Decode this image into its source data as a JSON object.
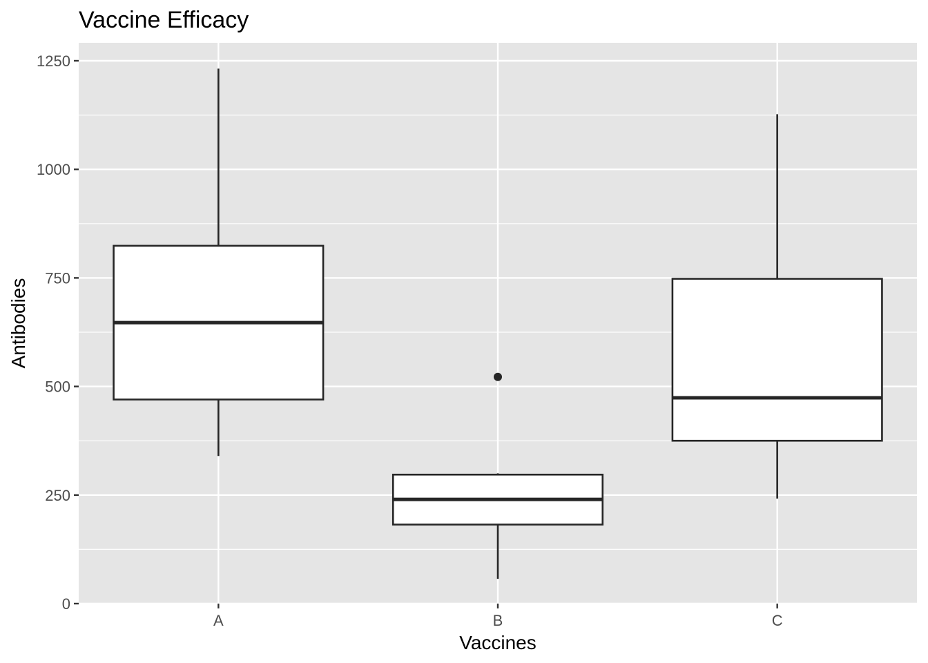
{
  "chart_data": {
    "type": "box",
    "title": "Vaccine Efficacy",
    "xlabel": "Vaccines",
    "ylabel": "Antibodies",
    "ylim": [
      0,
      1250
    ],
    "yticks": [
      0,
      250,
      500,
      750,
      1000,
      1250
    ],
    "categories": [
      "A",
      "B",
      "C"
    ],
    "boxes": [
      {
        "category": "A",
        "whisker_low": 340,
        "q1": 470,
        "median": 647,
        "q3": 824,
        "whisker_high": 1232,
        "outliers": []
      },
      {
        "category": "B",
        "whisker_low": 57,
        "q1": 182,
        "median": 240,
        "q3": 297,
        "whisker_high": 300,
        "outliers": [
          522
        ]
      },
      {
        "category": "C",
        "whisker_low": 242,
        "q1": 375,
        "median": 474,
        "q3": 748,
        "whisker_high": 1127,
        "outliers": []
      }
    ],
    "grid": true,
    "colors": {
      "panel": "#e5e5e5",
      "grid": "#ffffff",
      "box_fill": "#ffffff",
      "box_stroke": "#262626",
      "tick_text": "#4d4d4d"
    }
  }
}
